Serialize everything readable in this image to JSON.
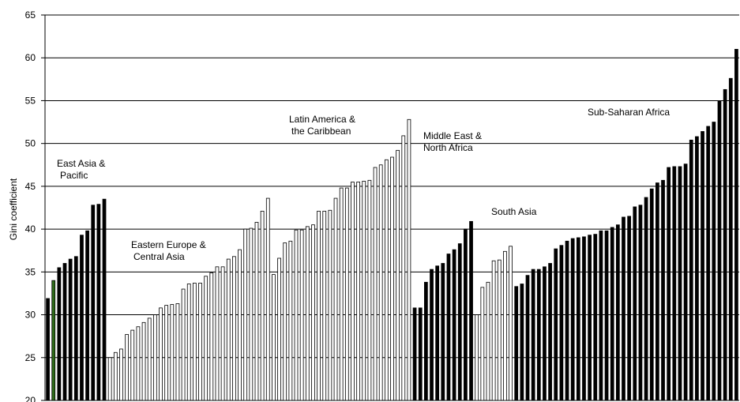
{
  "chart_data": {
    "type": "bar",
    "title": "",
    "ylabel": "Gini coefficient",
    "xlabel": "",
    "ylim": [
      20,
      65
    ],
    "yticks": [
      "20",
      "25",
      "30",
      "35",
      "40",
      "45",
      "50",
      "55",
      "60",
      "65"
    ],
    "grid": true,
    "legend": "none",
    "colors": {
      "dark": "#000000",
      "light": "#ffffff",
      "first_accent": "#2e6b1a",
      "outline": "#000000",
      "grid": "#000000"
    },
    "groups": [
      {
        "name_lines": [
          "East Asia &",
          "Pacific"
        ],
        "fill": "dark",
        "values": [
          31.9,
          34.0,
          35.5,
          36.0,
          36.5,
          36.8,
          39.3,
          39.8,
          42.8,
          42.9,
          43.5
        ]
      },
      {
        "name_lines": [
          "Eastern Europe &",
          "Central Asia"
        ],
        "fill": "light",
        "values": [
          25.0,
          25.6,
          26.0,
          27.7,
          28.2,
          28.6,
          29.1,
          29.6,
          30.0,
          30.8,
          31.1,
          31.2,
          31.3,
          33.0,
          33.6,
          33.7,
          33.7,
          34.5,
          34.9,
          35.6,
          35.6,
          36.5,
          36.8,
          37.6,
          40.0,
          40.1,
          40.8,
          42.1,
          43.6
        ]
      },
      {
        "name_lines": [
          "Latin America &",
          "the Caribbean"
        ],
        "fill": "light",
        "values": [
          34.7,
          36.6,
          38.4,
          38.6,
          39.9,
          39.9,
          40.3,
          40.5,
          42.1,
          42.1,
          42.2,
          43.6,
          44.8,
          44.8,
          45.5,
          45.5,
          45.6,
          45.7,
          47.2,
          47.5,
          48.1,
          48.4,
          49.2,
          50.9,
          52.8
        ]
      },
      {
        "name_lines": [
          "Middle East &",
          "North Africa"
        ],
        "fill": "dark",
        "values": [
          30.8,
          30.8,
          33.8,
          35.3,
          35.7,
          36.0,
          37.1,
          37.6,
          38.3,
          40.0,
          40.9
        ]
      },
      {
        "name_lines": [
          "South Asia"
        ],
        "fill": "light",
        "values": [
          30.0,
          33.2,
          33.8,
          36.3,
          36.4,
          37.4,
          38.0
        ]
      },
      {
        "name_lines": [
          "Sub-Saharan Africa"
        ],
        "fill": "dark",
        "values": [
          33.3,
          33.6,
          34.6,
          35.3,
          35.3,
          35.6,
          36.0,
          37.7,
          38.1,
          38.6,
          38.9,
          39.0,
          39.1,
          39.3,
          39.4,
          39.8,
          39.8,
          40.2,
          40.5,
          41.4,
          41.5,
          42.6,
          42.8,
          43.7,
          44.7,
          45.4,
          45.7,
          47.2,
          47.3,
          47.3,
          47.6,
          50.4,
          50.8,
          51.4,
          52.0,
          52.5,
          55.0,
          56.3,
          57.6,
          61.0
        ]
      }
    ]
  }
}
